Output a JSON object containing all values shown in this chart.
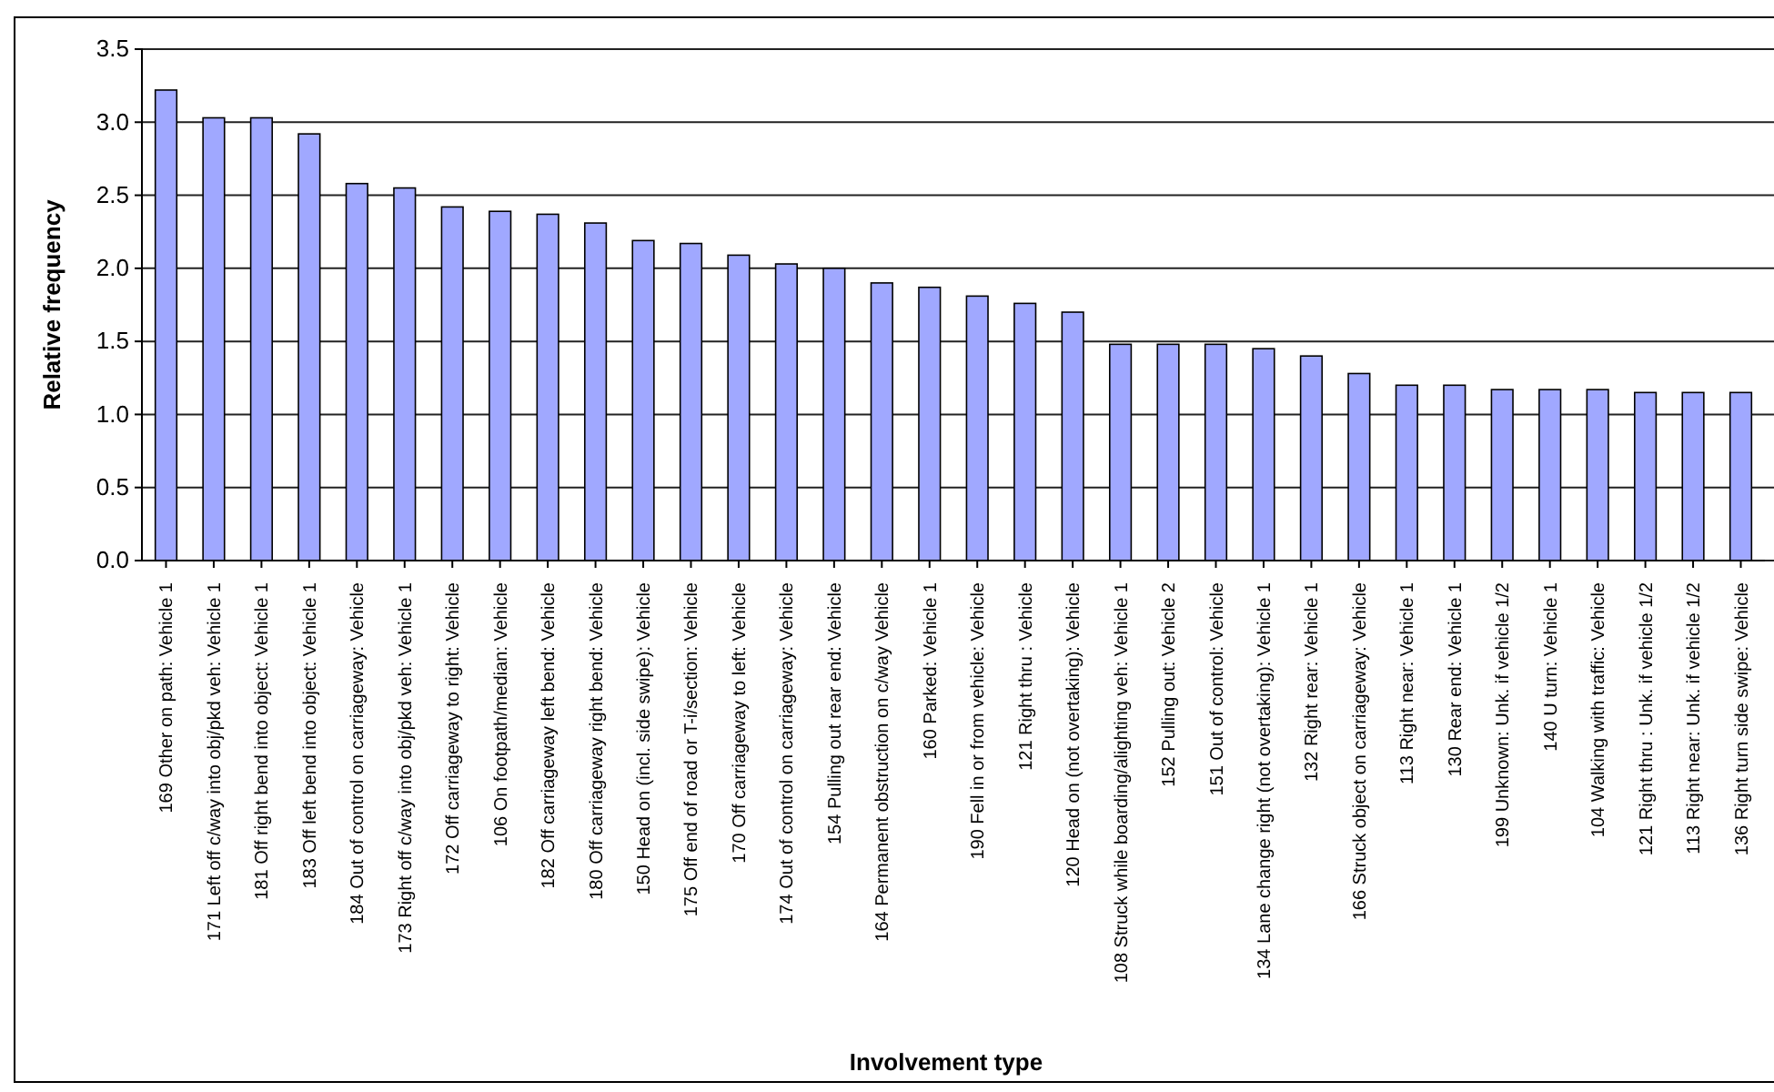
{
  "chart_data": {
    "type": "bar",
    "xlabel": "Involvement type",
    "ylabel": "Relative frequency",
    "categories": [
      "169 Other on path: Vehicle 1",
      "171 Left off c/way into obj/pkd veh: Vehicle 1",
      "181 Off right bend into object: Vehicle 1",
      "183 Off left bend into object: Vehicle 1",
      "184 Out of control on carriageway: Vehicle",
      "173 Right off c/way into obj/pkd veh: Vehicle 1",
      "172 Off carriageway to right: Vehicle",
      "106 On footpath/median: Vehicle",
      "182 Off carriageway left bend: Vehicle",
      "180 Off carriageway right bend: Vehicle",
      "150 Head on (incl. side swipe): Vehicle",
      "175 Off end of road or T-i/section: Vehicle",
      "170 Off carriageway to left: Vehicle",
      "174 Out of control on carriageway: Vehicle",
      "154 Pulling out rear end: Vehicle",
      "164 Permanent obstruction on c/way Vehicle",
      "160 Parked: Vehicle 1",
      "190 Fell in or from vehicle: Vehicle",
      "121 Right thru : Vehicle",
      "120 Head on (not overtaking): Vehicle",
      "108 Struck while boarding/alighting veh: Vehicle 1",
      "152 Pulling out: Vehicle 2",
      "151 Out of control: Vehicle",
      "134 Lane change right (not overtaking): Vehicle 1",
      "132 Right rear: Vehicle 1",
      "166 Struck object on carriageway: Vehicle",
      "113 Right near: Vehicle 1",
      "130 Rear end: Vehicle 1",
      "199 Unknown: Unk. if vehicle 1/2",
      "140 U turn: Vehicle 1",
      "104 Walking with traffic: Vehicle",
      "121 Right thru : Unk. if vehicle 1/2",
      "113 Right near: Unk. if vehicle 1/2",
      "136 Right turn side swipe: Vehicle"
    ],
    "values": [
      3.22,
      3.03,
      3.03,
      2.92,
      2.58,
      2.55,
      2.42,
      2.39,
      2.37,
      2.31,
      2.19,
      2.17,
      2.09,
      2.03,
      2.0,
      1.9,
      1.87,
      1.81,
      1.76,
      1.7,
      1.48,
      1.48,
      1.48,
      1.45,
      1.4,
      1.28,
      1.2,
      1.2,
      1.17,
      1.17,
      1.17,
      1.15,
      1.15,
      1.15
    ],
    "color": "#a0a8ff",
    "ylim": [
      0,
      3.5
    ],
    "yticks": [
      {
        "value": 0,
        "label": "0.0"
      },
      {
        "value": 0.5,
        "label": "0.5"
      },
      {
        "value": 1,
        "label": "1.0"
      },
      {
        "value": 1.5,
        "label": "1.5"
      },
      {
        "value": 2,
        "label": "2.0"
      },
      {
        "value": 2.5,
        "label": "2.5"
      },
      {
        "value": 3,
        "label": "3.0"
      },
      {
        "value": 3.5,
        "label": "3.5"
      }
    ],
    "grid": "y"
  }
}
